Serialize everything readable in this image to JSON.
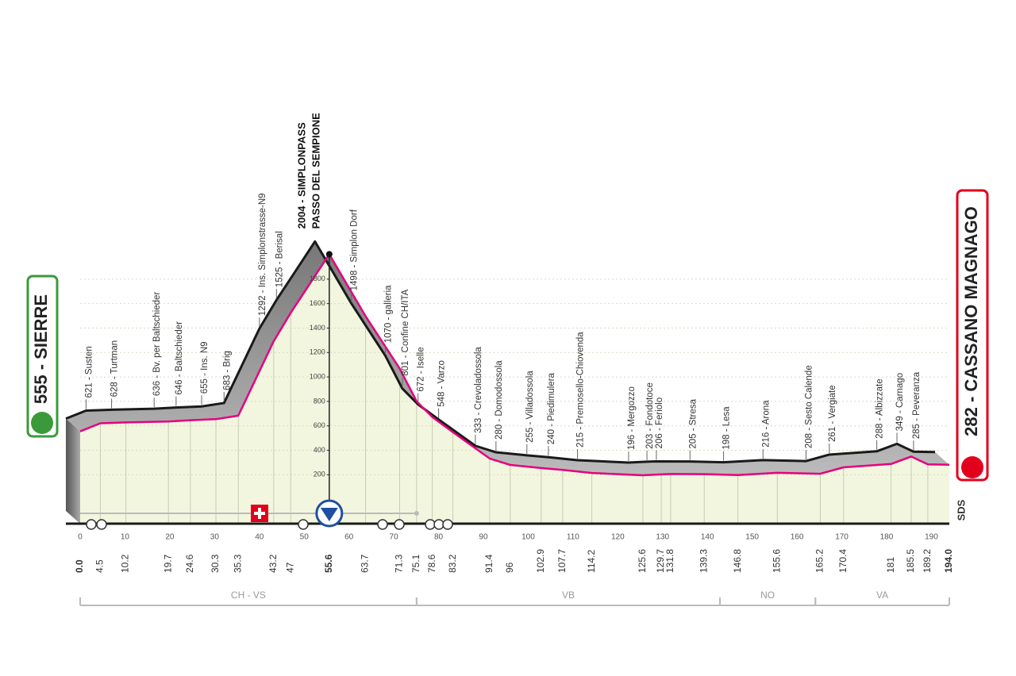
{
  "chart_data": {
    "type": "profile",
    "start": {
      "label": "555 - SIERRE",
      "km": {
        "value": 0,
        "label": "0.0"
      },
      "altitude": 555
    },
    "finish": {
      "label": "282 - CASSANO MAGNAGO",
      "km": {
        "value": 194,
        "label": "194.0"
      },
      "altitude": 282
    },
    "waypoints": [
      {
        "label": "621 - Susten",
        "km": 4.5,
        "altitude": 621
      },
      {
        "label": "628 - Turtman",
        "km": 10.2,
        "altitude": 628
      },
      {
        "label": "636 - Bv. per Baltschieder",
        "km": 19.7,
        "altitude": 636
      },
      {
        "label": "646 - Baltschieder",
        "km": 24.6,
        "altitude": 646
      },
      {
        "label": "655 - Ins. N9",
        "km": 30.3,
        "altitude": 655
      },
      {
        "label": "683 - Brig",
        "km": 35.3,
        "altitude": 683
      },
      {
        "label": "1292 - Ins. Simplonstrasse-N9",
        "km": 43.2,
        "altitude": 1292
      },
      {
        "label": "1525 - Berisal",
        "km": 47.0,
        "altitude": 1525
      },
      {
        "label": "2004 - SIMPLONPASS",
        "label2": "PASSO DEL SEMPIONE",
        "km": 55.6,
        "altitude": 2004,
        "summit": true
      },
      {
        "label": "1498 - Simplon Dorf",
        "km": 63.7,
        "altitude": 1498
      },
      {
        "label": "1070 - galleria",
        "km": 71.3,
        "altitude": 1070
      },
      {
        "label": "801 - Confine CH/ITA",
        "km": 75.1,
        "altitude": 801
      },
      {
        "label": "672 - Iselle",
        "km": 78.6,
        "altitude": 672
      },
      {
        "label": "548 - Varzo",
        "km": 83.2,
        "altitude": 548
      },
      {
        "label": "333 - Crevoladossola",
        "km": 91.4,
        "altitude": 333
      },
      {
        "label": "280 - Domodossola",
        "km": 96.0,
        "altitude": 280
      },
      {
        "label": "255 - Villadossola",
        "km": 102.9,
        "altitude": 255
      },
      {
        "label": "240 - Piedimulera",
        "km": 107.7,
        "altitude": 240
      },
      {
        "label": "215 - Premosello-Chiovenda",
        "km": 114.2,
        "altitude": 215
      },
      {
        "label": "196 - Mergozzo",
        "km": 125.6,
        "altitude": 196
      },
      {
        "label": "203 - Fondotoce",
        "km": 129.7,
        "altitude": 203
      },
      {
        "label": "206 - Feriolo",
        "km": 131.8,
        "altitude": 206
      },
      {
        "label": "205 - Stresa",
        "km": 139.3,
        "altitude": 205
      },
      {
        "label": "198 - Lesa",
        "km": 146.8,
        "altitude": 198
      },
      {
        "label": "216 - Arona",
        "km": 155.6,
        "altitude": 216
      },
      {
        "label": "208 - Sesto Calende",
        "km": 165.2,
        "altitude": 208
      },
      {
        "label": "261 - Vergiate",
        "km": 170.4,
        "altitude": 261
      },
      {
        "label": "288 - Albizzate",
        "km": 181.0,
        "altitude": 288
      },
      {
        "label": "349 - Carnago",
        "km": 185.5,
        "altitude": 349
      },
      {
        "label": "285 - Peveranza",
        "km": 189.2,
        "altitude": 285
      }
    ],
    "regions": [
      {
        "label": "CH - VS",
        "start": 0,
        "end": 75.1
      },
      {
        "label": "VB",
        "start": 75.1,
        "end": 142.8
      },
      {
        "label": "NO",
        "start": 142.8,
        "end": 164.1
      },
      {
        "label": "VA",
        "start": 164.1,
        "end": 194
      }
    ],
    "xlim": [
      0,
      194
    ],
    "xticks": [
      0,
      10,
      20,
      30,
      40,
      50,
      60,
      70,
      80,
      90,
      100,
      110,
      120,
      130,
      140,
      150,
      160,
      170,
      180,
      190
    ],
    "ylim": [
      -200,
      2000
    ],
    "yticks": [
      200,
      400,
      600,
      800,
      1000,
      1200,
      1400,
      1600,
      1800
    ],
    "grid": true,
    "line_color": "#e6007e",
    "logo": "SDS"
  }
}
